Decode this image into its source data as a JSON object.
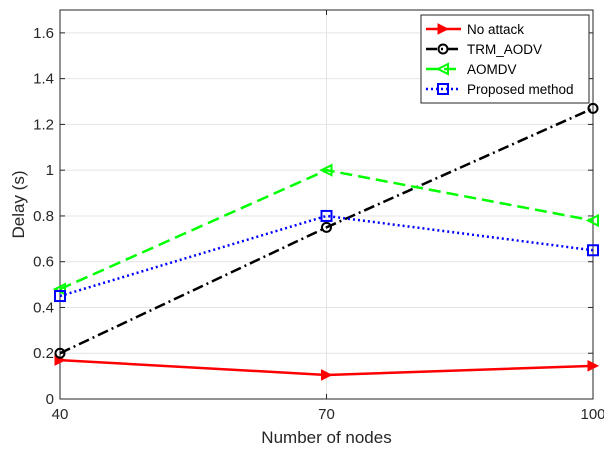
{
  "chart_data": {
    "type": "line",
    "title": "",
    "xlabel": "Number of nodes",
    "ylabel": "Delay (s)",
    "x": [
      40,
      70,
      100
    ],
    "xticks": [
      "40",
      "70",
      "100"
    ],
    "xlim": [
      40,
      100
    ],
    "ylim": [
      0,
      1.7
    ],
    "yticks": [
      "0",
      "0.2",
      "0.4",
      "0.6",
      "0.8",
      "1",
      "1.2",
      "1.4",
      "1.6"
    ],
    "grid": true,
    "legend_position": "top-right",
    "series": [
      {
        "name": "No attack",
        "values": [
          0.17,
          0.105,
          0.145
        ],
        "color": "#ff0000",
        "dash": "solid",
        "marker": "triangle-right"
      },
      {
        "name": "TRM_AODV",
        "values": [
          0.2,
          0.75,
          1.27
        ],
        "color": "#000000",
        "dash": "dashdot",
        "marker": "circle"
      },
      {
        "name": "AOMDV",
        "values": [
          0.48,
          1.0,
          0.78
        ],
        "color": "#00ff00",
        "dash": "dashed",
        "marker": "triangle-left"
      },
      {
        "name": "Proposed method",
        "values": [
          0.45,
          0.8,
          0.65
        ],
        "color": "#0000ff",
        "dash": "dotted",
        "marker": "square"
      }
    ]
  }
}
